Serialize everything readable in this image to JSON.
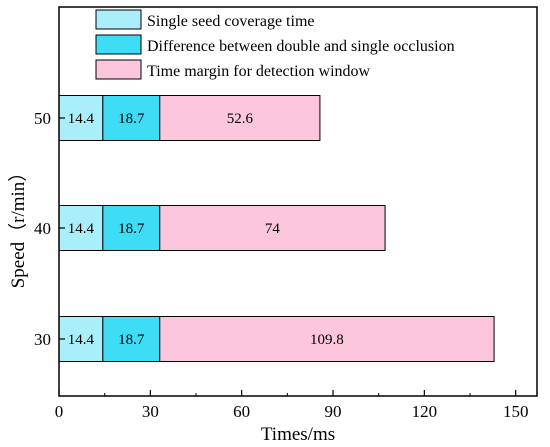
{
  "chart_data": {
    "type": "bar",
    "orientation": "horizontal",
    "stacked": true,
    "categories": [
      "50",
      "40",
      "30"
    ],
    "series": [
      {
        "name": "Single seed coverage time",
        "values": [
          14.4,
          14.4,
          14.4
        ],
        "labels": [
          "14.4",
          "14.4",
          "14.4"
        ],
        "color": "#aaeefa"
      },
      {
        "name": "Difference between double and single occlusion",
        "values": [
          18.7,
          18.7,
          18.7
        ],
        "labels": [
          "18.7",
          "18.7",
          "18.7"
        ],
        "color": "#3fdcf5"
      },
      {
        "name": "Time margin for detection window",
        "values": [
          52.6,
          74,
          109.8
        ],
        "labels": [
          "52.6",
          "74",
          "109.8"
        ],
        "color": "#fcc6dc"
      }
    ],
    "xlabel": "Times/ms",
    "ylabel": "Speed（r/min）",
    "xlim": [
      0,
      157
    ],
    "xticks": [
      0,
      30,
      60,
      90,
      120,
      150
    ],
    "legend_position": "top-right",
    "grid": false
  }
}
